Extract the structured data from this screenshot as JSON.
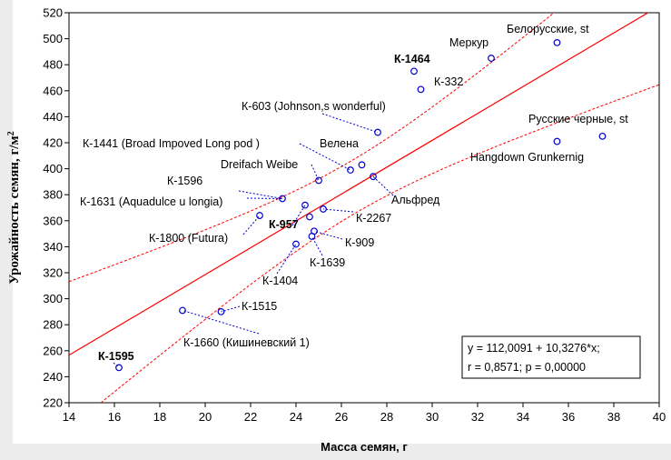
{
  "chart_data": {
    "type": "scatter",
    "xlabel": "Масса семян, г",
    "ylabel_main": "Урожайность семян, г/м",
    "ylabel_sup": "2",
    "xlim": [
      14,
      40
    ],
    "ylim": [
      220,
      520
    ],
    "xticks": [
      14,
      16,
      18,
      20,
      22,
      24,
      26,
      28,
      30,
      32,
      34,
      36,
      38,
      40
    ],
    "yticks": [
      220,
      240,
      260,
      280,
      300,
      320,
      340,
      360,
      380,
      400,
      420,
      440,
      460,
      480,
      500,
      520
    ],
    "grid": false,
    "regression": {
      "intercept": 112.0091,
      "slope": 10.3276,
      "color": "#ff0000"
    },
    "confidence_band_color": "#ff0000",
    "point_color": "#0000cc",
    "stats_lines": [
      "y = 112,0091 + 10,3276*x;",
      "r = 0,8571; p = 0,00000"
    ],
    "points": [
      {
        "x": 16.2,
        "y": 247
      },
      {
        "x": 19.0,
        "y": 291
      },
      {
        "x": 20.7,
        "y": 290
      },
      {
        "x": 22.4,
        "y": 364
      },
      {
        "x": 23.4,
        "y": 377
      },
      {
        "x": 24.0,
        "y": 342
      },
      {
        "x": 24.4,
        "y": 372
      },
      {
        "x": 24.6,
        "y": 363
      },
      {
        "x": 24.7,
        "y": 348
      },
      {
        "x": 24.8,
        "y": 352
      },
      {
        "x": 25.0,
        "y": 391
      },
      {
        "x": 25.2,
        "y": 369
      },
      {
        "x": 26.4,
        "y": 399
      },
      {
        "x": 26.9,
        "y": 403
      },
      {
        "x": 27.4,
        "y": 394
      },
      {
        "x": 27.6,
        "y": 428
      },
      {
        "x": 29.2,
        "y": 475
      },
      {
        "x": 29.5,
        "y": 461
      },
      {
        "x": 32.6,
        "y": 485
      },
      {
        "x": 35.5,
        "y": 497
      },
      {
        "x": 35.5,
        "y": 421
      },
      {
        "x": 37.5,
        "y": 425
      }
    ],
    "annotations": [
      {
        "text": "К-1595",
        "bold": true
      },
      {
        "text": "К-1515",
        "bold": false
      },
      {
        "text": "К-1660 (Кишиневский 1)",
        "bold": false
      },
      {
        "text": "К-1800 (Futura)",
        "bold": false
      },
      {
        "text": "К-1596",
        "bold": false
      },
      {
        "text": "К-1631 (Aquadulce u longia)",
        "bold": false
      },
      {
        "text": "К-1404",
        "bold": false
      },
      {
        "text": "К-957",
        "bold": true
      },
      {
        "text": "К-1639",
        "bold": false
      },
      {
        "text": "К-909",
        "bold": false
      },
      {
        "text": "К-2267",
        "bold": false
      },
      {
        "text": "Dreifach Weibe",
        "bold": false
      },
      {
        "text": "К-1441 (Broad Impoved Long pod )",
        "bold": false
      },
      {
        "text": "Велена",
        "bold": false
      },
      {
        "text": "Альфред",
        "bold": false
      },
      {
        "text": "К-603 (Johnson,s wonderful)",
        "bold": false
      },
      {
        "text": "К-1464",
        "bold": true
      },
      {
        "text": "К-332",
        "bold": false
      },
      {
        "text": "Меркур",
        "bold": false
      },
      {
        "text": "Белорусские, st",
        "bold": false
      },
      {
        "text": "Русские черные, st",
        "bold": false
      },
      {
        "text": "Hangdown Grunkernig",
        "bold": false
      }
    ]
  }
}
